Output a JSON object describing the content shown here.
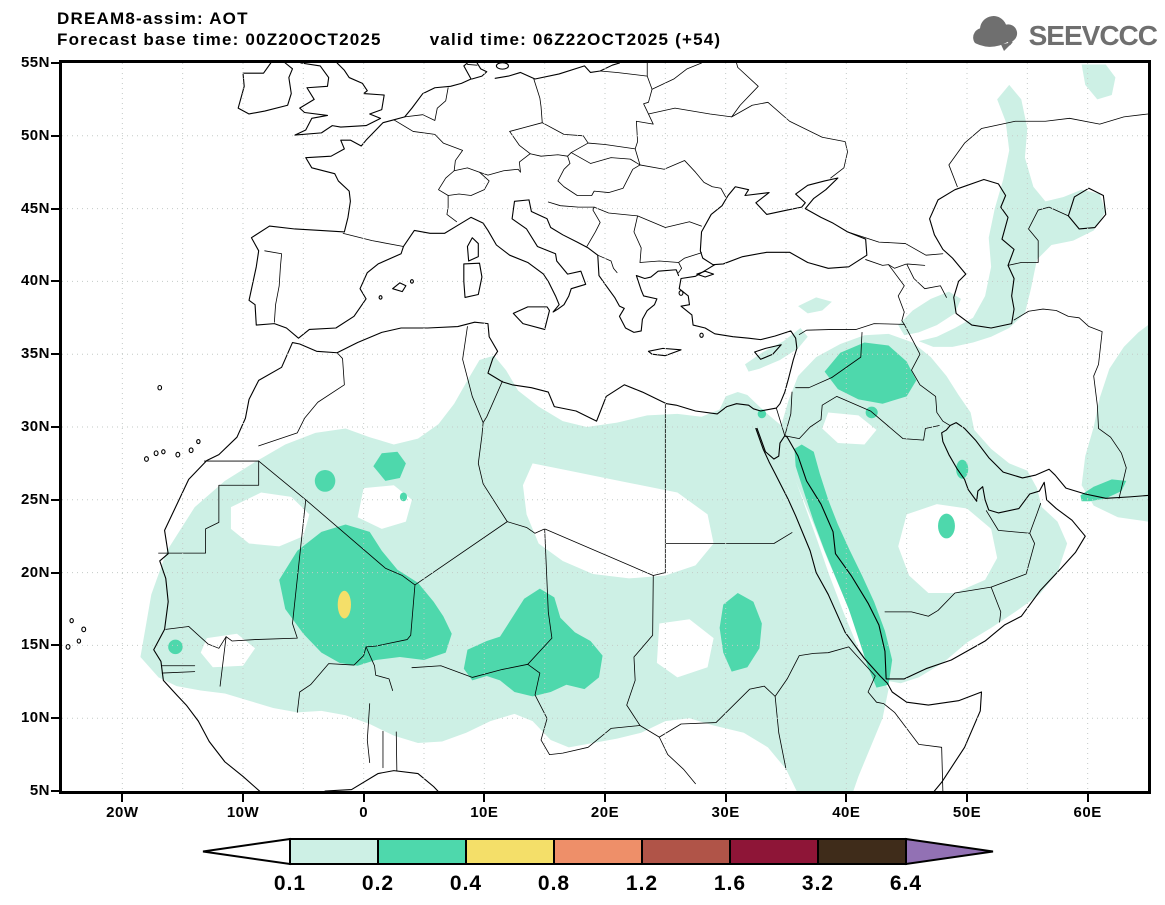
{
  "header": {
    "line1": "DREAM8-assim: AOT",
    "base_time": "Forecast base time: 00Z20OCT2025",
    "valid_time": "valid time: 06Z22OCT2025 (+54)"
  },
  "logo": {
    "text": "SEEVCCC",
    "color": "#6f6f6f"
  },
  "map": {
    "lon_min": -25,
    "lon_max": 65,
    "lat_min": 5,
    "lat_max": 55,
    "grid_step_deg": 5,
    "lat_ticks": [
      {
        "value": 55,
        "label": "55N"
      },
      {
        "value": 50,
        "label": "50N"
      },
      {
        "value": 45,
        "label": "45N"
      },
      {
        "value": 40,
        "label": "40N"
      },
      {
        "value": 35,
        "label": "35N"
      },
      {
        "value": 30,
        "label": "30N"
      },
      {
        "value": 25,
        "label": "25N"
      },
      {
        "value": 20,
        "label": "20N"
      },
      {
        "value": 15,
        "label": "15N"
      },
      {
        "value": 10,
        "label": "10N"
      },
      {
        "value": 5,
        "label": "5N"
      }
    ],
    "lon_ticks": [
      {
        "value": -20,
        "label": "20W"
      },
      {
        "value": -10,
        "label": "10W"
      },
      {
        "value": 0,
        "label": "0"
      },
      {
        "value": 10,
        "label": "10E"
      },
      {
        "value": 20,
        "label": "20E"
      },
      {
        "value": 30,
        "label": "30E"
      },
      {
        "value": 40,
        "label": "40E"
      },
      {
        "value": 50,
        "label": "50E"
      },
      {
        "value": 60,
        "label": "60E"
      }
    ]
  },
  "field_colors": {
    "aot_01_02": "#cdf0e5",
    "aot_02_04": "#4ed8ac",
    "aot_04_08": "#f4df69"
  },
  "colorbar": {
    "labels": [
      "0.1",
      "0.2",
      "0.4",
      "0.8",
      "1.2",
      "1.6",
      "3.2",
      "6.4"
    ],
    "segment_colors": [
      "#cdf0e5",
      "#4ed8ac",
      "#f4df69",
      "#ee8f69",
      "#b05448",
      "#8e1537",
      "#3f2c1a"
    ],
    "below_color": "#ffffff",
    "above_color": "#9271b4",
    "outline_color": "#000000"
  },
  "chart_data": {
    "type": "filled_contour_map",
    "variable": "AOT (aerosol optical thickness)",
    "model": "DREAM8-assim",
    "base_time": "00Z20OCT2025",
    "valid_time": "06Z22OCT2025",
    "forecast_hour": 54,
    "domain": {
      "lon": [
        -25,
        65
      ],
      "lat": [
        5,
        55
      ]
    },
    "contour_levels": [
      0.1,
      0.2,
      0.4,
      0.8,
      1.2,
      1.6,
      3.2,
      6.4
    ],
    "regions": [
      {
        "area": "Sahel/Sahara broad plume",
        "lon": [
          -19,
          40
        ],
        "lat": [
          8,
          31
        ],
        "aot": "0.1-0.2"
      },
      {
        "area": "Mali/Niger maximum",
        "lon": [
          -7,
          7
        ],
        "lat": [
          14,
          23
        ],
        "aot": "0.2-0.4",
        "core": {
          "lon": -1.6,
          "lat": 17.8,
          "aot": "0.4-0.8"
        }
      },
      {
        "area": "Chad",
        "lon": [
          8,
          20
        ],
        "lat": [
          12,
          19
        ],
        "aot": "0.2-0.4"
      },
      {
        "area": "Eastern Sudan",
        "lon": [
          29.5,
          33
        ],
        "lat": [
          13,
          18.5
        ],
        "aot": "0.2-0.4"
      },
      {
        "area": "Syria/Iraq",
        "lon": [
          38,
          46
        ],
        "lat": [
          31.5,
          36
        ],
        "aot": "0.2-0.4"
      },
      {
        "area": "Eastern Red Sea coast band",
        "lon": [
          35.5,
          44
        ],
        "lat": [
          12,
          29
        ],
        "aot": "0.2-0.4"
      },
      {
        "area": "Gulf of Oman coast",
        "lon": [
          59.5,
          63
        ],
        "lat": [
          25,
          26.5
        ],
        "aot": "0.2-0.4"
      },
      {
        "area": "Arabian peninsula fringe, Iran, Caspian band",
        "lon": [
          34,
          65
        ],
        "lat": [
          12,
          53
        ],
        "aot": "0.1-0.2"
      }
    ]
  }
}
